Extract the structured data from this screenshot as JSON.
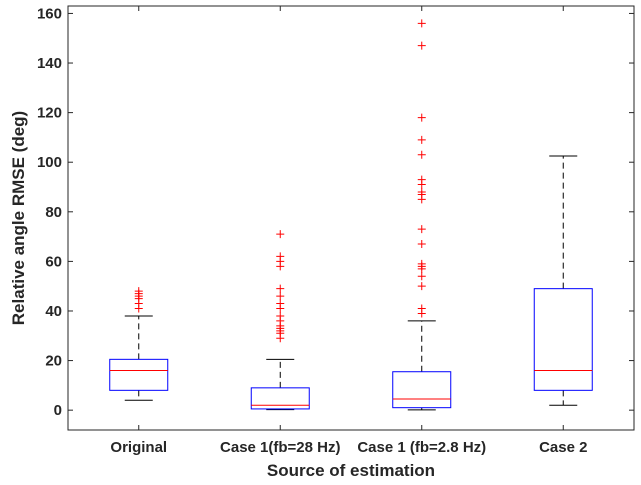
{
  "chart_data": {
    "type": "box",
    "xlabel": "Source of estimation",
    "ylabel": "Relative angle RMSE (deg)",
    "ylim": [
      -8,
      163
    ],
    "yticks": [
      0,
      20,
      40,
      60,
      80,
      100,
      120,
      140,
      160
    ],
    "categories": [
      "Original",
      "Case 1(fb=28 Hz)",
      "Case 1 (fb=2.8 Hz)",
      "Case 2"
    ],
    "boxes": [
      {
        "whisker_low": 4,
        "q1": 8,
        "median": 16,
        "q3": 20.5,
        "whisker_high": 38,
        "outliers": [
          41,
          43,
          45,
          46,
          47,
          48
        ]
      },
      {
        "whisker_low": 0.2,
        "q1": 0.5,
        "median": 2,
        "q3": 9,
        "whisker_high": 20.5,
        "outliers": [
          29,
          31,
          32,
          33,
          34,
          36,
          38,
          41,
          43,
          46,
          49,
          58,
          60,
          62,
          71
        ]
      },
      {
        "whisker_low": 0.1,
        "q1": 1,
        "median": 4.5,
        "q3": 15.5,
        "whisker_high": 36,
        "outliers": [
          39,
          41,
          50,
          54,
          57,
          58,
          59,
          67,
          73,
          85,
          87,
          88,
          91,
          93,
          103,
          109,
          118,
          147,
          156
        ]
      },
      {
        "whisker_low": 2,
        "q1": 8,
        "median": 16,
        "q3": 49,
        "whisker_high": 102.5,
        "outliers": []
      }
    ],
    "colors": {
      "box": "#0000ff",
      "median": "#ff0000",
      "whisker": "#000000",
      "outlier": "#ff0000",
      "axis": "#262626"
    }
  }
}
